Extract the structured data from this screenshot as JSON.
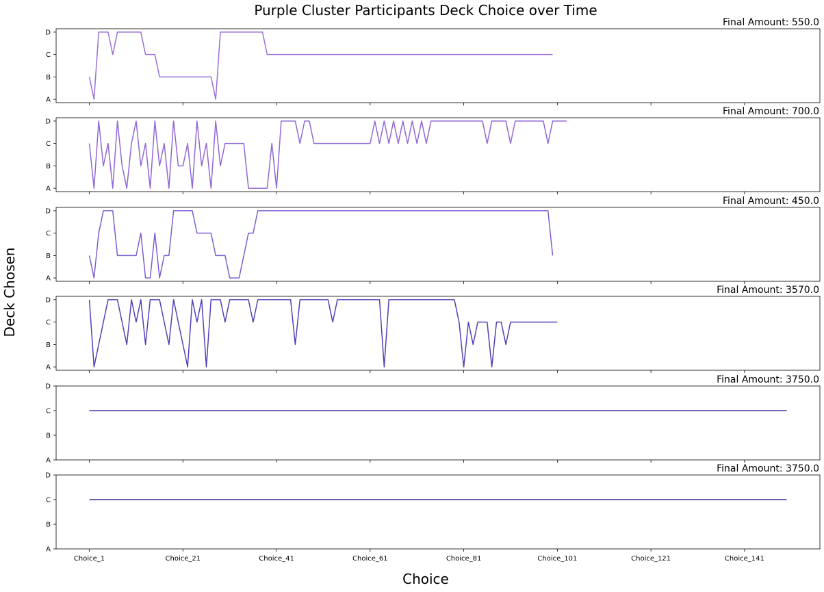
{
  "chart_data": {
    "type": "line",
    "title": "Purple Cluster Participants Deck Choice over Time",
    "xlabel": "Choice",
    "ylabel": "Deck Chosen",
    "y_categories": [
      "A",
      "B",
      "C",
      "D"
    ],
    "x_tick_labels": [
      "Choice_1",
      "Choice_21",
      "Choice_41",
      "Choice_61",
      "Choice_81",
      "Choice_101",
      "Choice_121",
      "Choice_141"
    ],
    "x_tick_positions": [
      1,
      21,
      41,
      61,
      81,
      101,
      121,
      141
    ],
    "x_range": [
      1,
      150
    ],
    "shared_x": true,
    "panels": [
      {
        "title": "Final Amount: 550.0",
        "color": "#9b6fd9",
        "values": [
          "B",
          "A",
          "D",
          "D",
          "D",
          "C",
          "D",
          "D",
          "D",
          "D",
          "D",
          "D",
          "C",
          "C",
          "C",
          "B",
          "B",
          "B",
          "B",
          "B",
          "B",
          "B",
          "B",
          "B",
          "B",
          "B",
          "B",
          "A",
          "D",
          "D",
          "D",
          "D",
          "D",
          "D",
          "D",
          "D",
          "D",
          "D",
          "C",
          "C",
          "C",
          "C",
          "C",
          "C",
          "C",
          "C",
          "C",
          "C",
          "C",
          "C",
          "C",
          "C",
          "C",
          "C",
          "C",
          "C",
          "C",
          "C",
          "C",
          "C",
          "C",
          "C",
          "C",
          "C",
          "C",
          "C",
          "C",
          "C",
          "C",
          "C",
          "C",
          "C",
          "C",
          "C",
          "C",
          "C",
          "C",
          "C",
          "C",
          "C",
          "C",
          "C",
          "C",
          "C",
          "C",
          "C",
          "C",
          "C",
          "C",
          "C",
          "C",
          "C",
          "C",
          "C",
          "C",
          "C",
          "C",
          "C",
          "C",
          "C"
        ]
      },
      {
        "title": "Final Amount: 700.0",
        "color": "#9166d6",
        "values": [
          "C",
          "A",
          "D",
          "B",
          "C",
          "A",
          "D",
          "B",
          "A",
          "C",
          "D",
          "B",
          "C",
          "A",
          "D",
          "B",
          "C",
          "A",
          "D",
          "B",
          "B",
          "C",
          "A",
          "D",
          "B",
          "C",
          "A",
          "D",
          "B",
          "C",
          "C",
          "C",
          "C",
          "C",
          "A",
          "A",
          "A",
          "A",
          "A",
          "C",
          "A",
          "D",
          "D",
          "D",
          "D",
          "C",
          "D",
          "D",
          "C",
          "C",
          "C",
          "C",
          "C",
          "C",
          "C",
          "C",
          "C",
          "C",
          "C",
          "C",
          "C",
          "D",
          "C",
          "D",
          "C",
          "D",
          "C",
          "D",
          "C",
          "D",
          "C",
          "D",
          "C",
          "D",
          "D",
          "D",
          "D",
          "D",
          "D",
          "D",
          "D",
          "D",
          "D",
          "D",
          "D",
          "C",
          "D",
          "D",
          "D",
          "D",
          "C",
          "D",
          "D",
          "D",
          "D",
          "D",
          "D",
          "D",
          "C",
          "D",
          "D",
          "D",
          "D"
        ]
      },
      {
        "title": "Final Amount: 450.0",
        "color": "#7f5ccf",
        "values": [
          "B",
          "A",
          "C",
          "D",
          "D",
          "D",
          "B",
          "B",
          "B",
          "B",
          "B",
          "C",
          "A",
          "A",
          "C",
          "A",
          "B",
          "B",
          "D",
          "D",
          "D",
          "D",
          "D",
          "C",
          "C",
          "C",
          "C",
          "B",
          "B",
          "B",
          "A",
          "A",
          "A",
          "B",
          "C",
          "C",
          "D",
          "D",
          "D",
          "D",
          "D",
          "D",
          "D",
          "D",
          "D",
          "D",
          "D",
          "D",
          "D",
          "D",
          "D",
          "D",
          "D",
          "D",
          "D",
          "D",
          "D",
          "D",
          "D",
          "D",
          "D",
          "D",
          "D",
          "D",
          "D",
          "D",
          "D",
          "D",
          "D",
          "D",
          "D",
          "D",
          "D",
          "D",
          "D",
          "D",
          "D",
          "D",
          "D",
          "D",
          "D",
          "D",
          "D",
          "D",
          "D",
          "D",
          "D",
          "D",
          "D",
          "D",
          "D",
          "D",
          "D",
          "D",
          "D",
          "D",
          "D",
          "D",
          "D",
          "B"
        ]
      },
      {
        "title": "Final Amount: 3570.0",
        "color": "#5040b8",
        "values": [
          "D",
          "A",
          "B",
          "C",
          "D",
          "D",
          "D",
          "C",
          "B",
          "D",
          "C",
          "D",
          "B",
          "D",
          "D",
          "D",
          "C",
          "B",
          "D",
          "C",
          "B",
          "A",
          "D",
          "C",
          "D",
          "A",
          "D",
          "D",
          "D",
          "C",
          "D",
          "D",
          "D",
          "D",
          "D",
          "C",
          "D",
          "D",
          "D",
          "D",
          "D",
          "D",
          "D",
          "D",
          "B",
          "D",
          "D",
          "D",
          "D",
          "D",
          "D",
          "D",
          "C",
          "D",
          "D",
          "D",
          "D",
          "D",
          "D",
          "D",
          "D",
          "D",
          "D",
          "A",
          "D",
          "D",
          "D",
          "D",
          "D",
          "D",
          "D",
          "D",
          "D",
          "D",
          "D",
          "D",
          "D",
          "D",
          "D",
          "C",
          "A",
          "C",
          "B",
          "C",
          "C",
          "C",
          "A",
          "C",
          "C",
          "B",
          "C",
          "C",
          "C",
          "C",
          "C",
          "C",
          "C",
          "C",
          "C",
          "C",
          "C"
        ]
      },
      {
        "title": "Final Amount: 3750.0",
        "color": "#473aa8",
        "constant": "C",
        "length": 150
      },
      {
        "title": "Final Amount: 3750.0",
        "color": "#3a2f8f",
        "constant": "C",
        "length": 150
      }
    ]
  }
}
